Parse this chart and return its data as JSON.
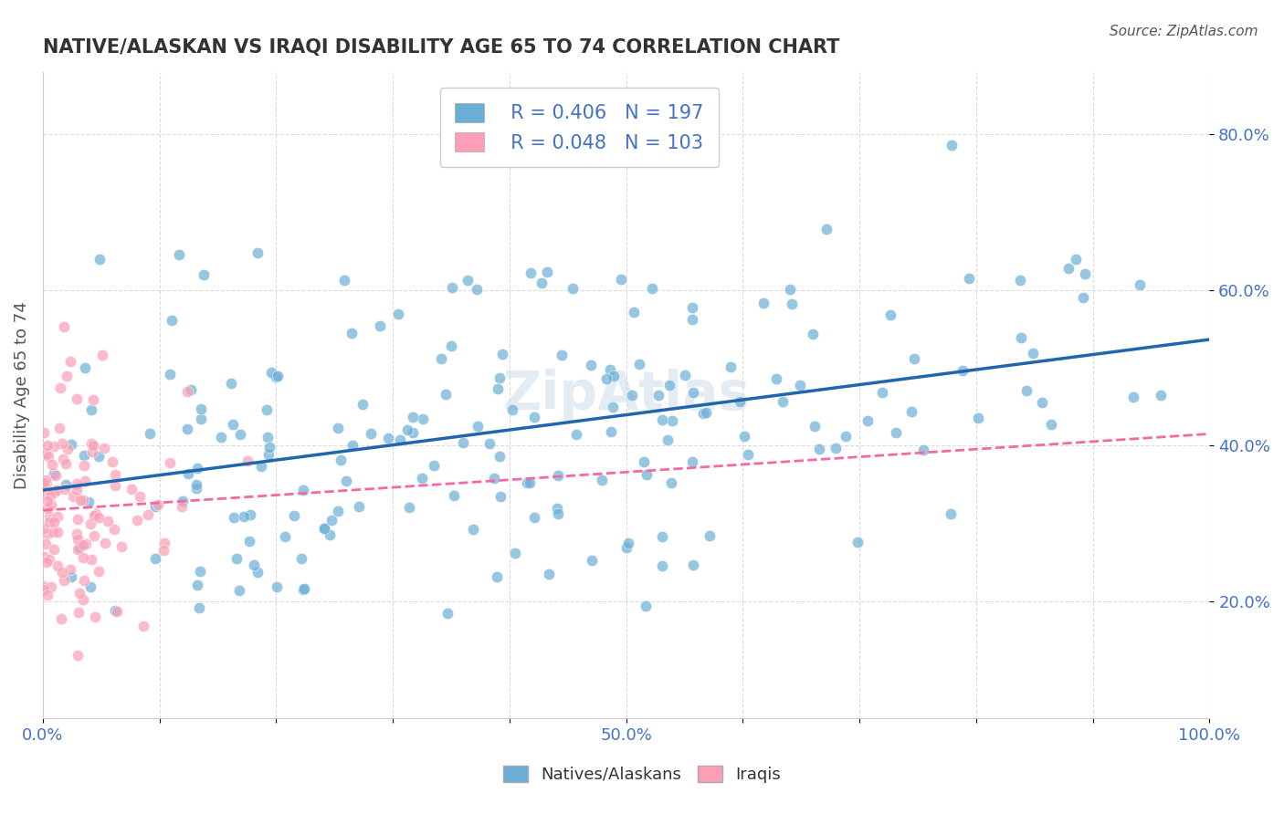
{
  "title": "NATIVE/ALASKAN VS IRAQI DISABILITY AGE 65 TO 74 CORRELATION CHART",
  "source": "Source: ZipAtlas.com",
  "xlabel": "",
  "ylabel": "Disability Age 65 to 74",
  "xlim": [
    0.0,
    1.0
  ],
  "ylim": [
    0.05,
    0.88
  ],
  "xtick_labels": [
    "0.0%",
    "",
    "",
    "",
    "",
    "50.0%",
    "",
    "",
    "",
    "",
    "100.0%"
  ],
  "ytick_labels": [
    "20.0%",
    "40.0%",
    "60.0%",
    "80.0%"
  ],
  "blue_color": "#6baed6",
  "pink_color": "#fa9fb5",
  "blue_line_color": "#2166ac",
  "pink_line_color": "#f768a1",
  "legend_R_blue": "R = 0.406",
  "legend_N_blue": "N = 197",
  "legend_R_pink": "R = 0.048",
  "legend_N_pink": "N = 103",
  "legend_label_blue": "Natives/Alaskans",
  "legend_label_pink": "Iraqis",
  "blue_R": 0.406,
  "blue_N": 197,
  "pink_R": 0.048,
  "pink_N": 103,
  "watermark": "ZipAtlas",
  "title_color": "#333333",
  "legend_text_color": "#4472c4",
  "grid_color": "#cccccc",
  "background_color": "#ffffff"
}
